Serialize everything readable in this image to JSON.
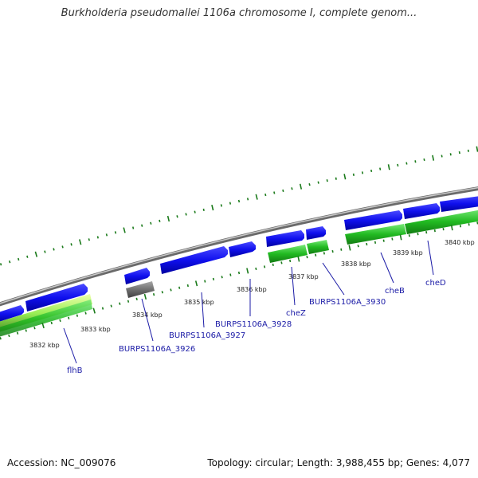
{
  "title": "Burkholderia pseudomallei 1106a chromosome I, complete genom...",
  "footer": {
    "accession": "Accession: NC_009076",
    "stats": "Topology: circular; Length: 3,988,455 bp; Genes: 4,077"
  },
  "colors": {
    "background": "#ffffff",
    "backbone": "#8c8c8c",
    "forward_gene": "#1010ee",
    "reverse_gene": "#22bb22",
    "reverse_gene_light": "#99ee55",
    "pseudo_gene": "#707070",
    "tick": "#1a7a1a",
    "label": "#1a1aa6"
  },
  "tick_labels": [
    "3832 kbp",
    "3833 kbp",
    "3834 kbp",
    "3835 kbp",
    "3836 kbp",
    "3837 kbp",
    "3838 kbp",
    "3839 kbp",
    "3840 kbp"
  ],
  "gene_labels": [
    "flhB",
    "BURPS1106A_3926",
    "BURPS1106A_3927",
    "BURPS1106A_3928",
    "cheZ",
    "BURPS1106A_3930",
    "cheB",
    "cheD"
  ]
}
